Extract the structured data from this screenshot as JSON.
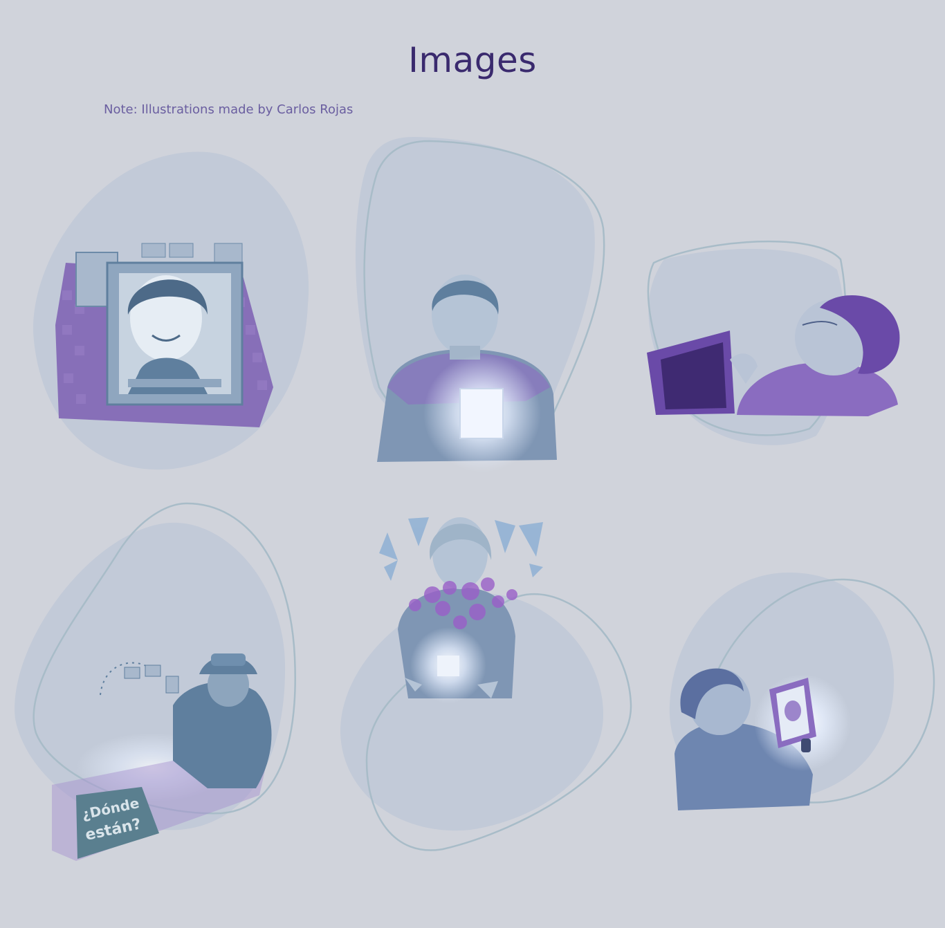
{
  "page": {
    "title": "Images",
    "note": "Note: Illustrations made by Carlos Rojas"
  },
  "colors": {
    "background": "#d0d3db",
    "blob": "#c2cad8",
    "outline": "#a8bcc8",
    "title": "#3a2a6e",
    "note": "#6a5ea0",
    "accent_purple": "#6a4aa8",
    "accent_blue": "#6f92b0"
  },
  "gallery": {
    "images": [
      {
        "icon": "memorial-portrait-illustration"
      },
      {
        "icon": "woman-with-glowing-photo-illustration"
      },
      {
        "icon": "elderly-woman-with-tablet-illustration"
      },
      {
        "icon": "woman-with-donde-estan-banner-illustration"
      },
      {
        "icon": "woman-with-flowers-illustration"
      },
      {
        "icon": "woman-holding-photo-illustration"
      }
    ]
  }
}
